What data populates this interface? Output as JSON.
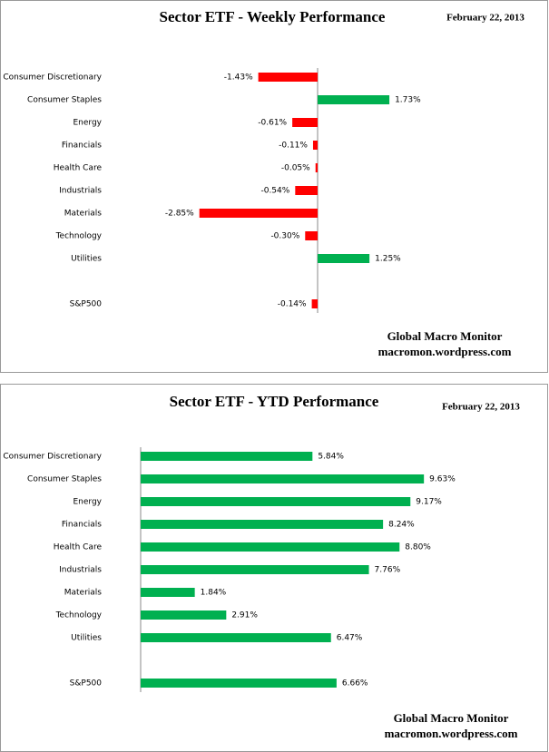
{
  "chart_data": [
    {
      "type": "bar",
      "orientation": "horizontal",
      "title": "Sector ETF - Weekly Performance",
      "subtitle": "February 22, 2013",
      "categories": [
        "Consumer Discretionary",
        "Consumer Staples",
        "Energy",
        "Financials",
        "Health Care",
        "Industrials",
        "Materials",
        "Technology",
        "Utilities",
        null,
        "S&P500"
      ],
      "values": [
        -1.43,
        1.73,
        -0.61,
        -0.11,
        -0.05,
        -0.54,
        -2.85,
        -0.3,
        1.25,
        null,
        -0.14
      ],
      "value_labels": [
        "-1.43%",
        "1.73%",
        "-0.61%",
        "-0.11%",
        "-0.05%",
        "-0.54%",
        "-2.85%",
        "-0.30%",
        "1.25%",
        null,
        "-0.14%"
      ],
      "color": "#00b050",
      "negative_color": "#ff0000",
      "xlim": [
        -3.5,
        3.5
      ],
      "annotations": [
        "Global Macro Monitor",
        "macromon.wordpress.com"
      ]
    },
    {
      "type": "bar",
      "orientation": "horizontal",
      "title": "Sector ETF - YTD Performance",
      "subtitle": "February 22, 2013",
      "categories": [
        "Consumer Discretionary",
        "Consumer Staples",
        "Energy",
        "Financials",
        "Health Care",
        "Industrials",
        "Materials",
        "Technology",
        "Utilities",
        null,
        "S&P500"
      ],
      "values": [
        5.84,
        9.63,
        9.17,
        8.24,
        8.8,
        7.76,
        1.84,
        2.91,
        6.47,
        null,
        6.66
      ],
      "value_labels": [
        "5.84%",
        "9.63%",
        "9.17%",
        "8.24%",
        "8.80%",
        "7.76%",
        "1.84%",
        "2.91%",
        "6.47%",
        null,
        "6.66%"
      ],
      "color": "#00b050",
      "negative_color": "#ff0000",
      "xlim": [
        0,
        12
      ],
      "annotations": [
        "Global Macro Monitor",
        "macromon.wordpress.com"
      ]
    }
  ]
}
